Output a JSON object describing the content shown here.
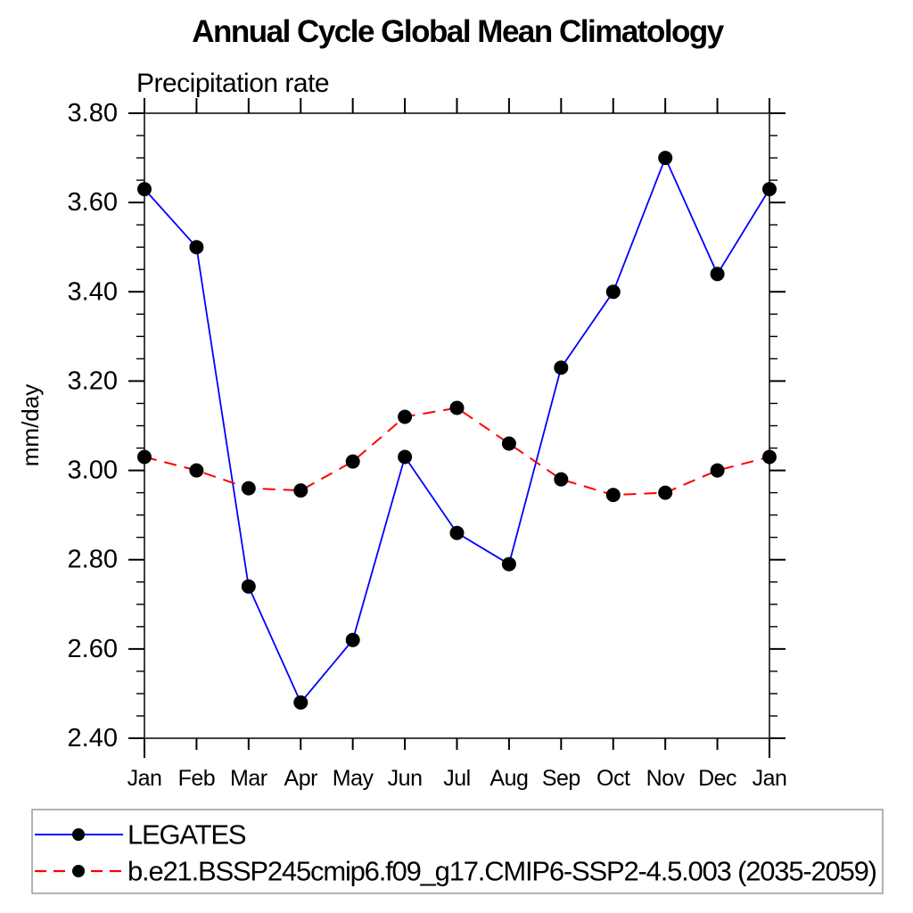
{
  "title": "Annual Cycle Global Mean Climatology",
  "subtitle": "Precipitation rate",
  "chart_data": {
    "type": "line",
    "categories": [
      "Jan",
      "Feb",
      "Mar",
      "Apr",
      "May",
      "Jun",
      "Jul",
      "Aug",
      "Sep",
      "Oct",
      "Nov",
      "Dec",
      "Jan"
    ],
    "series": [
      {
        "name": "LEGATES",
        "color": "#0000ff",
        "line_style": "solid",
        "line_width": 1.8,
        "marker": "circle",
        "marker_color": "#000000",
        "values": [
          3.63,
          3.5,
          2.74,
          2.48,
          2.62,
          3.03,
          2.86,
          2.79,
          3.23,
          3.4,
          3.7,
          3.44,
          3.63
        ]
      },
      {
        "name": "b.e21.BSSP245cmip6.f09_g17.CMIP6-SSP2-4.5.003 (2035-2059)",
        "color": "#ff0000",
        "line_style": "dashed",
        "line_width": 2,
        "marker": "circle",
        "marker_color": "#000000",
        "values": [
          3.03,
          3.0,
          2.96,
          2.955,
          3.02,
          3.12,
          3.14,
          3.06,
          2.98,
          2.945,
          2.95,
          3.0,
          3.03
        ]
      }
    ],
    "xlabel": "",
    "ylabel": "mm/day",
    "ylim": [
      2.4,
      3.8
    ],
    "ytick_step": 0.2,
    "yminor_step": 0.05,
    "yticks": [
      "2.40",
      "2.60",
      "2.80",
      "3.00",
      "3.20",
      "3.40",
      "3.60",
      "3.80"
    ],
    "grid": false,
    "legend_position": "bottom-left-box",
    "axis_color": "#404040",
    "tick_color": "#000000",
    "legend_border_color": "#999999",
    "background_color": "#ffffff"
  }
}
